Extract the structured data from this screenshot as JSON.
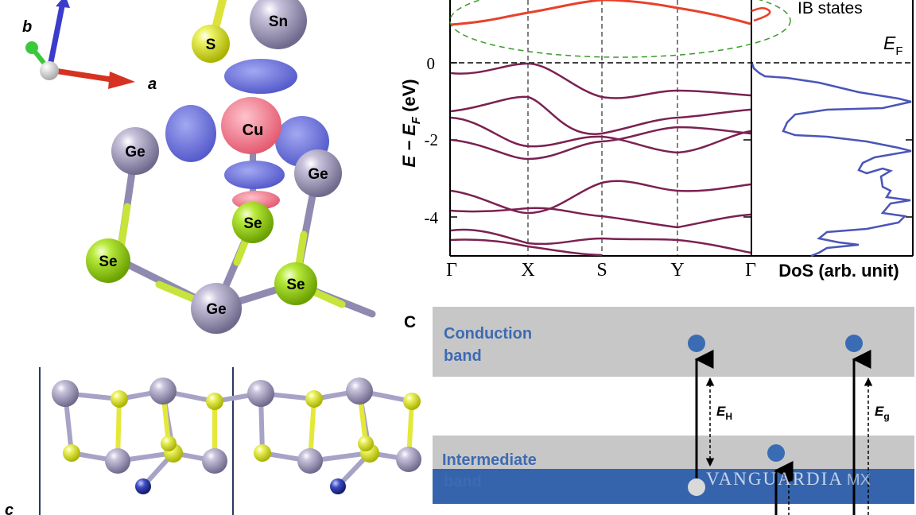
{
  "structure": {
    "axis_labels": {
      "b": "b",
      "a": "a",
      "c": "c"
    },
    "atoms": {
      "sn": "Sn",
      "s": "S",
      "cu": "Cu",
      "ge": "Ge",
      "se": "Se"
    }
  },
  "band_plot": {
    "y_axis_main": "E − E",
    "y_axis_sub": "F",
    "y_axis_unit": " (eV)",
    "y_ticks": [
      "0",
      "-2",
      "-4"
    ],
    "k_points": [
      "Γ",
      "X",
      "S",
      "Y",
      "Γ"
    ],
    "ib_label": "IB states",
    "ef_main": "E",
    "ef_sub": "F",
    "dos_label": "DoS (arb. unit)"
  },
  "schematic": {
    "panel_letter": "C",
    "conduction_line1": "Conduction",
    "conduction_line2": "band",
    "intermediate_line1": "Intermediate",
    "intermediate_line2": "band",
    "eh_main": "E",
    "eh_sub": "H",
    "eg_main": "E",
    "eg_sub": "g"
  },
  "colors": {
    "ib_band": "#e8412b",
    "valence_band": "#7b2151",
    "dos": "#4a55b8",
    "band_fill": "#c8c7c7",
    "intermediate_fill": "#3564ad",
    "electron": "#3a6cb4",
    "text_blue": "#3d6bb3"
  },
  "watermark": {
    "text": "VANGUARDIA",
    "suffix": "MX"
  }
}
